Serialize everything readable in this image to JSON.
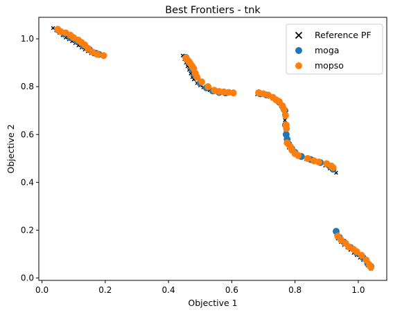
{
  "chart_data": {
    "type": "scatter",
    "title": "Best Frontiers - tnk",
    "xlabel": "Objective 1",
    "ylabel": "Objective 2",
    "xlim": [
      -0.01,
      1.09
    ],
    "ylim": [
      -0.01,
      1.09
    ],
    "xticks": [
      0.0,
      0.2,
      0.4,
      0.6,
      0.8,
      1.0
    ],
    "xtick_labels": [
      "0.0",
      "0.2",
      "0.4",
      "0.6",
      "0.8",
      "1.0"
    ],
    "yticks": [
      0.0,
      0.2,
      0.4,
      0.6,
      0.8,
      1.0
    ],
    "ytick_labels": [
      "0.0",
      "0.2",
      "0.4",
      "0.6",
      "0.8",
      "1.0"
    ],
    "grid": false,
    "legend_position": "top-right",
    "series": [
      {
        "name": "Reference PF",
        "marker": "x",
        "color": "#000000",
        "points": [
          [
            0.035,
            1.045
          ],
          [
            0.045,
            1.035
          ],
          [
            0.055,
            1.025
          ],
          [
            0.065,
            1.015
          ],
          [
            0.075,
            1.005
          ],
          [
            0.085,
            0.998
          ],
          [
            0.095,
            0.99
          ],
          [
            0.105,
            0.982
          ],
          [
            0.115,
            0.972
          ],
          [
            0.125,
            0.963
          ],
          [
            0.135,
            0.955
          ],
          [
            0.145,
            0.948
          ],
          [
            0.155,
            0.94
          ],
          [
            0.165,
            0.935
          ],
          [
            0.175,
            0.93
          ],
          [
            0.185,
            0.928
          ],
          [
            0.445,
            0.93
          ],
          [
            0.45,
            0.915
          ],
          [
            0.455,
            0.9
          ],
          [
            0.46,
            0.885
          ],
          [
            0.465,
            0.87
          ],
          [
            0.47,
            0.855
          ],
          [
            0.475,
            0.84
          ],
          [
            0.48,
            0.83
          ],
          [
            0.49,
            0.815
          ],
          [
            0.5,
            0.805
          ],
          [
            0.51,
            0.797
          ],
          [
            0.52,
            0.79
          ],
          [
            0.53,
            0.785
          ],
          [
            0.54,
            0.78
          ],
          [
            0.55,
            0.777
          ],
          [
            0.56,
            0.775
          ],
          [
            0.575,
            0.773
          ],
          [
            0.59,
            0.772
          ],
          [
            0.605,
            0.771
          ],
          [
            0.68,
            0.768
          ],
          [
            0.69,
            0.767
          ],
          [
            0.7,
            0.765
          ],
          [
            0.71,
            0.762
          ],
          [
            0.72,
            0.757
          ],
          [
            0.73,
            0.75
          ],
          [
            0.74,
            0.742
          ],
          [
            0.75,
            0.73
          ],
          [
            0.76,
            0.71
          ],
          [
            0.765,
            0.69
          ],
          [
            0.768,
            0.66
          ],
          [
            0.77,
            0.62
          ],
          [
            0.772,
            0.59
          ],
          [
            0.775,
            0.565
          ],
          [
            0.78,
            0.545
          ],
          [
            0.79,
            0.53
          ],
          [
            0.8,
            0.518
          ],
          [
            0.81,
            0.51
          ],
          [
            0.82,
            0.503
          ],
          [
            0.835,
            0.497
          ],
          [
            0.85,
            0.49
          ],
          [
            0.865,
            0.484
          ],
          [
            0.88,
            0.478
          ],
          [
            0.895,
            0.47
          ],
          [
            0.91,
            0.458
          ],
          [
            0.92,
            0.45
          ],
          [
            0.93,
            0.44
          ],
          [
            0.93,
            0.185
          ],
          [
            0.935,
            0.165
          ],
          [
            0.945,
            0.15
          ],
          [
            0.955,
            0.138
          ],
          [
            0.965,
            0.128
          ],
          [
            0.975,
            0.117
          ],
          [
            0.985,
            0.105
          ],
          [
            0.995,
            0.095
          ],
          [
            1.005,
            0.085
          ],
          [
            1.015,
            0.075
          ],
          [
            1.025,
            0.062
          ],
          [
            1.03,
            0.052
          ],
          [
            1.035,
            0.045
          ],
          [
            1.04,
            0.038
          ]
        ]
      },
      {
        "name": "moga",
        "marker": "o",
        "color": "#1f77b4",
        "points": [
          [
            0.05,
            1.038
          ],
          [
            0.07,
            1.02
          ],
          [
            0.09,
            1.005
          ],
          [
            0.11,
            0.99
          ],
          [
            0.13,
            0.972
          ],
          [
            0.15,
            0.955
          ],
          [
            0.17,
            0.94
          ],
          [
            0.18,
            0.935
          ],
          [
            0.455,
            0.922
          ],
          [
            0.465,
            0.9
          ],
          [
            0.475,
            0.872
          ],
          [
            0.485,
            0.845
          ],
          [
            0.5,
            0.815
          ],
          [
            0.52,
            0.795
          ],
          [
            0.54,
            0.782
          ],
          [
            0.56,
            0.776
          ],
          [
            0.58,
            0.774
          ],
          [
            0.69,
            0.77
          ],
          [
            0.71,
            0.765
          ],
          [
            0.73,
            0.755
          ],
          [
            0.75,
            0.735
          ],
          [
            0.76,
            0.718
          ],
          [
            0.768,
            0.7
          ],
          [
            0.77,
            0.64
          ],
          [
            0.772,
            0.6
          ],
          [
            0.775,
            0.58
          ],
          [
            0.78,
            0.56
          ],
          [
            0.79,
            0.54
          ],
          [
            0.8,
            0.525
          ],
          [
            0.82,
            0.508
          ],
          [
            0.85,
            0.495
          ],
          [
            0.88,
            0.483
          ],
          [
            0.91,
            0.468
          ],
          [
            0.92,
            0.455
          ],
          [
            0.93,
            0.195
          ],
          [
            0.94,
            0.17
          ],
          [
            0.955,
            0.15
          ],
          [
            0.975,
            0.128
          ],
          [
            0.995,
            0.105
          ],
          [
            1.015,
            0.085
          ],
          [
            1.03,
            0.06
          ],
          [
            1.04,
            0.048
          ]
        ]
      },
      {
        "name": "mopso",
        "marker": "o",
        "color": "#ff7f0e",
        "points": [
          [
            0.05,
            1.04
          ],
          [
            0.06,
            1.03
          ],
          [
            0.075,
            1.025
          ],
          [
            0.09,
            1.015
          ],
          [
            0.1,
            1.005
          ],
          [
            0.115,
            0.995
          ],
          [
            0.125,
            0.985
          ],
          [
            0.135,
            0.975
          ],
          [
            0.145,
            0.96
          ],
          [
            0.16,
            0.945
          ],
          [
            0.175,
            0.935
          ],
          [
            0.195,
            0.93
          ],
          [
            0.455,
            0.92
          ],
          [
            0.46,
            0.912
          ],
          [
            0.465,
            0.905
          ],
          [
            0.47,
            0.895
          ],
          [
            0.475,
            0.885
          ],
          [
            0.48,
            0.875
          ],
          [
            0.485,
            0.855
          ],
          [
            0.49,
            0.84
          ],
          [
            0.505,
            0.82
          ],
          [
            0.525,
            0.8
          ],
          [
            0.545,
            0.785
          ],
          [
            0.56,
            0.78
          ],
          [
            0.575,
            0.778
          ],
          [
            0.59,
            0.776
          ],
          [
            0.605,
            0.774
          ],
          [
            0.685,
            0.775
          ],
          [
            0.7,
            0.77
          ],
          [
            0.715,
            0.765
          ],
          [
            0.73,
            0.755
          ],
          [
            0.74,
            0.745
          ],
          [
            0.75,
            0.738
          ],
          [
            0.76,
            0.72
          ],
          [
            0.765,
            0.705
          ],
          [
            0.77,
            0.68
          ],
          [
            0.772,
            0.64
          ],
          [
            0.773,
            0.625
          ],
          [
            0.775,
            0.565
          ],
          [
            0.785,
            0.55
          ],
          [
            0.79,
            0.535
          ],
          [
            0.8,
            0.52
          ],
          [
            0.81,
            0.512
          ],
          [
            0.84,
            0.5
          ],
          [
            0.86,
            0.49
          ],
          [
            0.875,
            0.485
          ],
          [
            0.9,
            0.478
          ],
          [
            0.915,
            0.468
          ],
          [
            0.92,
            0.462
          ],
          [
            0.935,
            0.175
          ],
          [
            0.945,
            0.16
          ],
          [
            0.96,
            0.145
          ],
          [
            0.97,
            0.13
          ],
          [
            0.985,
            0.12
          ],
          [
            0.995,
            0.11
          ],
          [
            1.01,
            0.095
          ],
          [
            1.025,
            0.075
          ],
          [
            1.035,
            0.055
          ],
          [
            1.04,
            0.045
          ]
        ]
      }
    ]
  }
}
